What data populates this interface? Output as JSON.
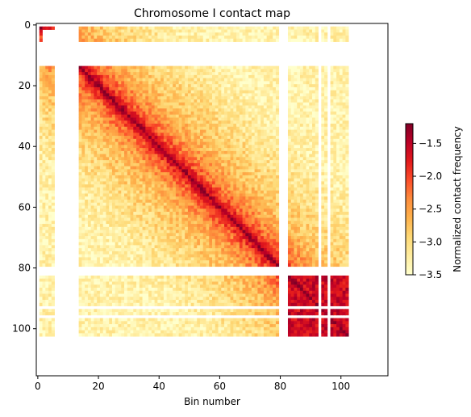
{
  "chart_data": {
    "type": "heatmap",
    "title": "Chromosome I contact map",
    "xlabel": "Bin number",
    "ylabel": "",
    "xlim": [
      -0.5,
      115.5
    ],
    "ylim": [
      115.5,
      -0.5
    ],
    "x_ticks": [
      0,
      20,
      40,
      60,
      80,
      100
    ],
    "y_ticks": [
      0,
      20,
      40,
      60,
      80,
      100
    ],
    "matrix_size": 103,
    "data_extent_bins": [
      0,
      102
    ],
    "masked_bins": [
      0,
      6,
      7,
      8,
      9,
      10,
      11,
      12,
      13,
      80,
      81,
      82,
      93,
      96
    ],
    "partially_masked_bins": [
      2,
      3,
      4,
      5
    ],
    "diagonal_value": -1.2,
    "background_value": -3.3,
    "colorbar": {
      "label": "Normalized contact frequency",
      "min": -3.5,
      "max": -1.2,
      "ticks": [
        -1.5,
        -2.0,
        -2.5,
        -3.0,
        -3.5
      ],
      "tick_labels": [
        "−1.5",
        "−2.0",
        "−2.5",
        "−3.0",
        "−3.5"
      ],
      "colormap": "YlOrRd",
      "colors": [
        "#ffffcc",
        "#ffeda0",
        "#fed976",
        "#feb24c",
        "#fd8d3c",
        "#fc4e2a",
        "#e31a1c",
        "#bd0026",
        "#800026"
      ]
    }
  }
}
